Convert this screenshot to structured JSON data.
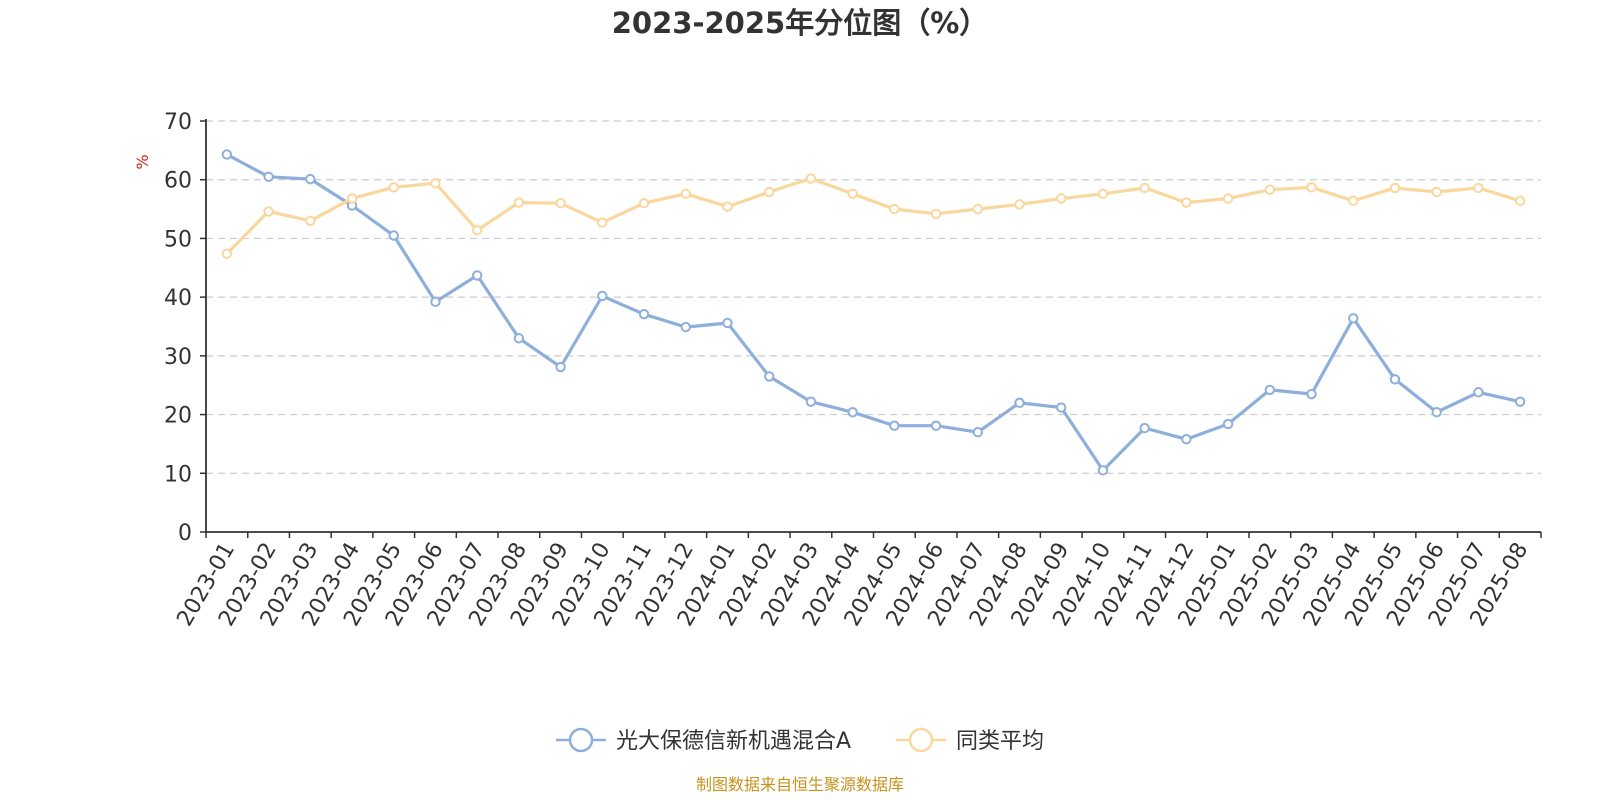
{
  "chart_data": {
    "type": "line",
    "title": "2023-2025年分位图（%）",
    "ylabel": "%",
    "ylim": [
      0,
      70
    ],
    "yticks": [
      0,
      10,
      20,
      30,
      40,
      50,
      60,
      70
    ],
    "grid": true,
    "legend_position": "bottom",
    "categories": [
      "2023-01",
      "2023-02",
      "2023-03",
      "2023-04",
      "2023-05",
      "2023-06",
      "2023-07",
      "2023-08",
      "2023-09",
      "2023-10",
      "2023-11",
      "2023-12",
      "2024-01",
      "2024-02",
      "2024-03",
      "2024-04",
      "2024-05",
      "2024-06",
      "2024-07",
      "2024-08",
      "2024-09",
      "2024-10",
      "2024-11",
      "2024-12",
      "2025-01",
      "2025-02",
      "2025-03",
      "2025-04",
      "2025-05",
      "2025-06",
      "2025-07",
      "2025-08"
    ],
    "series": [
      {
        "name": "光大保德信新机遇混合A",
        "color": "#8eaedb",
        "values": [
          64.3,
          60.5,
          60.1,
          55.6,
          50.5,
          39.2,
          43.7,
          33.0,
          28.1,
          40.2,
          37.1,
          34.9,
          35.6,
          26.5,
          22.2,
          20.4,
          18.1,
          18.1,
          17.0,
          22.0,
          21.2,
          10.5,
          17.7,
          15.8,
          18.4,
          24.2,
          23.5,
          36.4,
          26.0,
          20.4,
          23.8,
          22.2
        ]
      },
      {
        "name": "同类平均",
        "color": "#fad79c",
        "values": [
          47.4,
          54.6,
          53.0,
          56.8,
          58.7,
          59.4,
          51.4,
          56.1,
          56.0,
          52.7,
          56.0,
          57.6,
          55.4,
          57.9,
          60.2,
          57.6,
          55.0,
          54.2,
          55.0,
          55.8,
          56.8,
          57.6,
          58.6,
          56.1,
          56.8,
          58.3,
          58.7,
          56.4,
          58.6,
          57.9,
          58.6,
          56.4
        ]
      }
    ],
    "source_note": "制图数据来自恒生聚源数据库"
  }
}
